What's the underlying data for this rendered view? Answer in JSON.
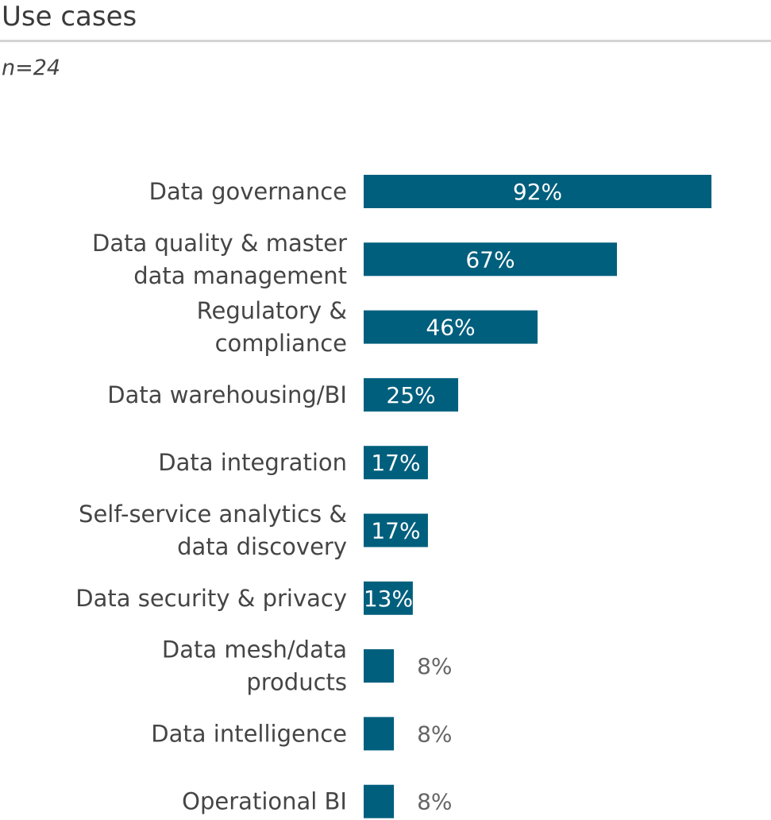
{
  "chart_data": {
    "type": "bar",
    "orientation": "horizontal",
    "title": "Use cases",
    "subtitle": "n=24",
    "categories": [
      [
        "Data governance"
      ],
      [
        "Data quality & master",
        "data management"
      ],
      [
        "Regulatory &",
        "compliance"
      ],
      [
        "Data warehousing/BI"
      ],
      [
        "Data integration"
      ],
      [
        "Self-service analytics &",
        "data discovery"
      ],
      [
        "Data security & privacy"
      ],
      [
        "Data mesh/data",
        "products"
      ],
      [
        "Data intelligence"
      ],
      [
        "Operational BI"
      ]
    ],
    "values": [
      92,
      67,
      46,
      25,
      17,
      17,
      13,
      8,
      8,
      8
    ],
    "value_labels": [
      "92%",
      "67%",
      "46%",
      "25%",
      "17%",
      "17%",
      "13%",
      "8%",
      "8%",
      "8%"
    ],
    "xlim": [
      0,
      100
    ],
    "xlabel": "",
    "ylabel": "",
    "grid": false,
    "bar_color": "#005f7d"
  }
}
